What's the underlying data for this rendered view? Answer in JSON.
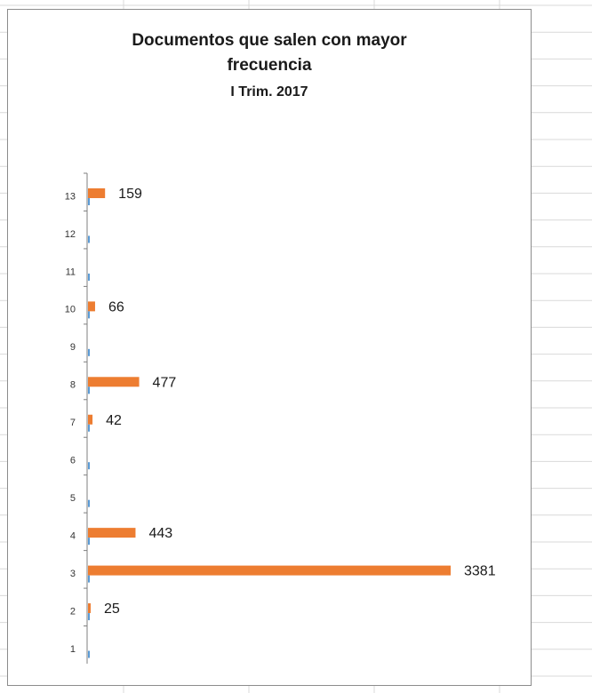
{
  "chart_data": {
    "type": "bar",
    "orientation": "horizontal",
    "title": "Documentos que salen con mayor frecuencia",
    "title_lines": [
      "Documentos que salen con mayor",
      "frecuencia"
    ],
    "subtitle": "I Trim. 2017",
    "categories": [
      "1",
      "2",
      "3",
      "4",
      "5",
      "6",
      "7",
      "8",
      "9",
      "10",
      "11",
      "12",
      "13"
    ],
    "series": [
      {
        "color": "#5b9bd5",
        "values": [
          0,
          0,
          0,
          0,
          0,
          0,
          0,
          0,
          0,
          0,
          0,
          0,
          0
        ]
      },
      {
        "color": "#ed7d31",
        "values": [
          0,
          25,
          3381,
          443,
          0,
          0,
          42,
          477,
          0,
          66,
          0,
          0,
          159
        ]
      }
    ],
    "data_labels": [
      "",
      "25",
      "3381",
      "443",
      "",
      "",
      "42",
      "477",
      "",
      "66",
      "",
      "",
      "159"
    ],
    "xlim": [
      0,
      3381
    ],
    "grid": false,
    "legend": "none"
  }
}
